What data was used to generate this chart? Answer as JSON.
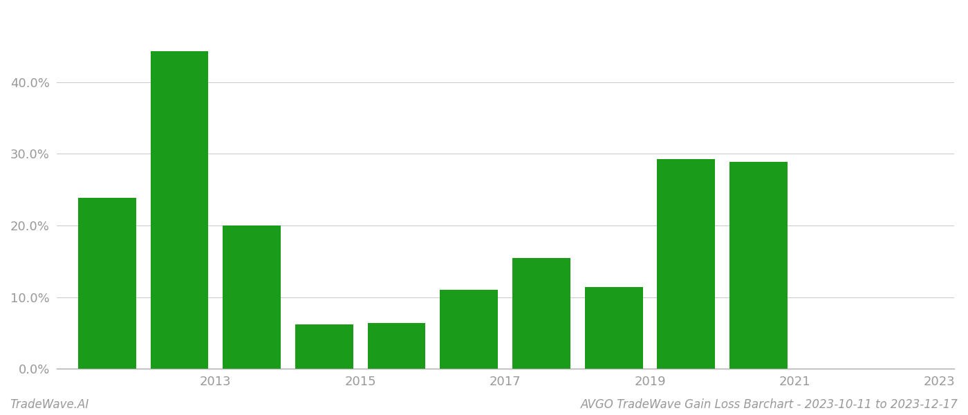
{
  "years": [
    0,
    1,
    2,
    3,
    4,
    5,
    6,
    7,
    8,
    9,
    10
  ],
  "values": [
    0.239,
    0.443,
    0.2,
    0.062,
    0.064,
    0.11,
    0.155,
    0.114,
    0.293,
    0.289,
    0.0
  ],
  "bar_color": "#1a9c1a",
  "ylim": [
    0,
    0.5
  ],
  "yticks": [
    0.0,
    0.1,
    0.2,
    0.3,
    0.4
  ],
  "ytick_labels": [
    "0.0%",
    "10.0%",
    "20.0%",
    "30.0%",
    "40.0%"
  ],
  "xtick_positions": [
    1.5,
    3.5,
    5.5,
    7.5,
    9.5,
    11.5
  ],
  "xtick_labels": [
    "2013",
    "2015",
    "2017",
    "2019",
    "2021",
    "2023"
  ],
  "footer_left": "TradeWave.AI",
  "footer_right": "AVGO TradeWave Gain Loss Barchart - 2023-10-11 to 2023-12-17",
  "background_color": "#ffffff",
  "grid_color": "#cccccc",
  "bar_width": 0.8,
  "tick_color": "#999999",
  "tick_fontsize": 13,
  "footer_fontsize": 12
}
